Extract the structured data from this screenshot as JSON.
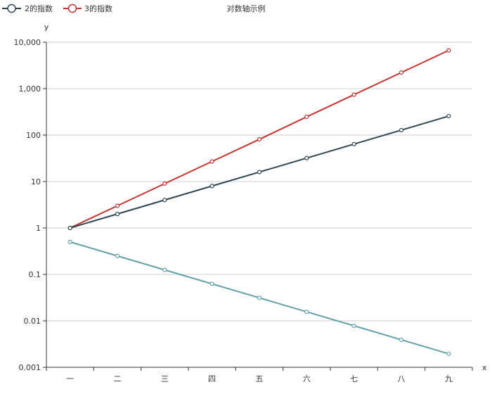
{
  "chart_data": {
    "type": "line",
    "title": "对数轴示例",
    "xlabel": "x",
    "ylabel": "y",
    "categories": [
      "一",
      "二",
      "三",
      "四",
      "五",
      "六",
      "七",
      "八",
      "九"
    ],
    "yscale": "log",
    "ylim": [
      0.001,
      10000
    ],
    "y_ticks": [
      0.001,
      0.01,
      0.1,
      1,
      10,
      100,
      1000,
      10000
    ],
    "y_tick_labels": [
      "0.001",
      "0.01",
      "0.1",
      "1",
      "10",
      "100",
      "1,000",
      "10,000"
    ],
    "grid": "horizontal",
    "legend_position": "top-left",
    "series": [
      {
        "name": "3的指数",
        "color": "#c23531",
        "values": [
          1,
          3,
          9,
          27,
          81,
          247,
          741,
          2223,
          6669
        ]
      },
      {
        "name": "2的指数",
        "color": "#2f4554",
        "values": [
          1,
          2,
          4,
          8,
          16,
          32,
          64,
          128,
          256
        ]
      },
      {
        "name": "",
        "color": "#61a0a8",
        "values": [
          0.5,
          0.25,
          0.125,
          0.0625,
          0.03125,
          0.015625,
          0.0078125,
          0.00390625,
          0.001953125
        ]
      }
    ],
    "legend": [
      {
        "name": "2的指数",
        "color": "#2f4554"
      },
      {
        "name": "3的指数",
        "color": "#c23531"
      }
    ]
  }
}
